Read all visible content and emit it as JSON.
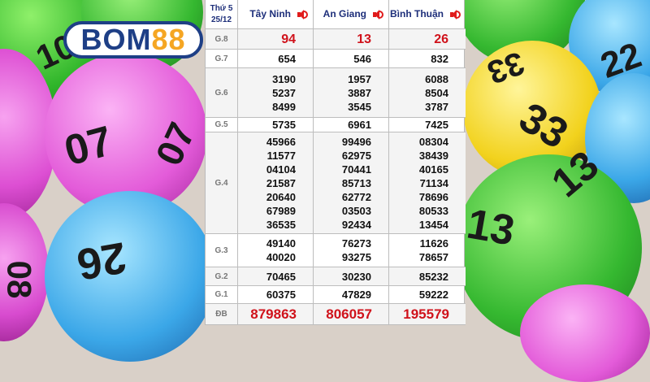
{
  "brand": {
    "logo_text": "BOM88"
  },
  "header": {
    "day": "Thứ 5",
    "date": "25/12",
    "provinces": [
      "Tây Ninh",
      "An Giang",
      "Bình Thuận"
    ],
    "speaker_icon": "speaker-icon"
  },
  "prizes": [
    {
      "label": "G.8",
      "values": [
        [
          "94"
        ],
        [
          "13"
        ],
        [
          "26"
        ]
      ]
    },
    {
      "label": "G.7",
      "values": [
        [
          "654"
        ],
        [
          "546"
        ],
        [
          "832"
        ]
      ]
    },
    {
      "label": "G.6",
      "values": [
        [
          "3190",
          "5237",
          "8499"
        ],
        [
          "1957",
          "3887",
          "3545"
        ],
        [
          "6088",
          "8504",
          "3787"
        ]
      ]
    },
    {
      "label": "G.5",
      "values": [
        [
          "5735"
        ],
        [
          "6961"
        ],
        [
          "7425"
        ]
      ]
    },
    {
      "label": "G.4",
      "values": [
        [
          "45966",
          "11577",
          "04104",
          "21587",
          "20640",
          "67989",
          "36535"
        ],
        [
          "99496",
          "62975",
          "70441",
          "85713",
          "62772",
          "03503",
          "92434"
        ],
        [
          "08304",
          "38439",
          "40165",
          "71134",
          "78696",
          "80533",
          "13454"
        ]
      ]
    },
    {
      "label": "G.3",
      "values": [
        [
          "49140",
          "40020"
        ],
        [
          "76273",
          "93275"
        ],
        [
          "11626",
          "78657"
        ]
      ]
    },
    {
      "label": "G.2",
      "values": [
        [
          "70465"
        ],
        [
          "30230"
        ],
        [
          "85232"
        ]
      ]
    },
    {
      "label": "G.1",
      "values": [
        [
          "60375"
        ],
        [
          "47829"
        ],
        [
          "59222"
        ]
      ]
    },
    {
      "label": "ĐB",
      "values": [
        [
          "879863"
        ],
        [
          "806057"
        ],
        [
          "195579"
        ]
      ]
    }
  ],
  "balls": [
    "10",
    "07",
    "07",
    "26",
    "08",
    "33",
    "22",
    "33",
    "13",
    "13"
  ],
  "colors": {
    "accent_red": "#d0121b",
    "header_blue": "#1e2f7a",
    "logo_blue": "#1e3f86",
    "logo_orange": "#f5a623"
  }
}
